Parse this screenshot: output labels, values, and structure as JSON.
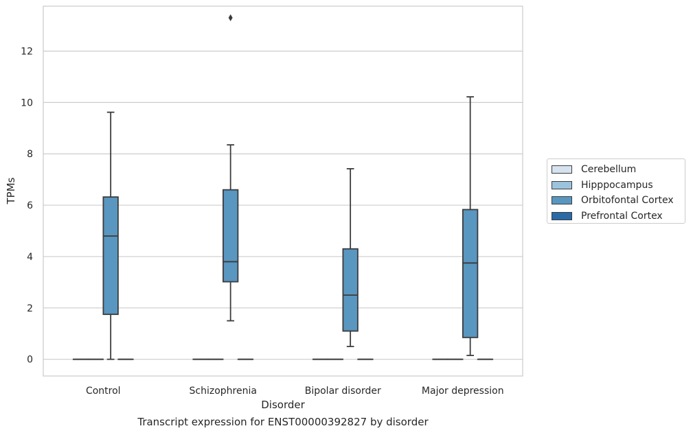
{
  "caption": "Transcript expression for ENST00000392827 by disorder",
  "chart_data": {
    "type": "boxplot",
    "xlabel": "Disorder",
    "ylabel": "TPMs",
    "ylim": [
      -0.65,
      13.75
    ],
    "yticks": [
      0,
      2,
      4,
      6,
      8,
      10,
      12
    ],
    "categories": [
      "Control",
      "Schizophrenia",
      "Bipolar disorder",
      "Major depression"
    ],
    "grid": "horizontal",
    "legend_placement": "center-right outside",
    "series": [
      {
        "name": "Cerebellum",
        "color": "#d6e3ef",
        "boxes": [
          {
            "q1": 0,
            "median": 0,
            "q3": 0,
            "whisker_low": 0,
            "whisker_high": 0
          },
          {
            "q1": 0,
            "median": 0,
            "q3": 0,
            "whisker_low": 0,
            "whisker_high": 0
          },
          {
            "q1": 0,
            "median": 0,
            "q3": 0,
            "whisker_low": 0,
            "whisker_high": 0
          },
          {
            "q1": 0,
            "median": 0,
            "q3": 0,
            "whisker_low": 0,
            "whisker_high": 0
          }
        ]
      },
      {
        "name": "Hipppocampus",
        "color": "#9cc3dd",
        "boxes": [
          {
            "q1": 0,
            "median": 0,
            "q3": 0,
            "whisker_low": 0,
            "whisker_high": 0
          },
          {
            "q1": 0,
            "median": 0,
            "q3": 0,
            "whisker_low": 0,
            "whisker_high": 0
          },
          {
            "q1": 0,
            "median": 0,
            "q3": 0,
            "whisker_low": 0,
            "whisker_high": 0
          },
          {
            "q1": 0,
            "median": 0,
            "q3": 0,
            "whisker_low": 0,
            "whisker_high": 0
          }
        ]
      },
      {
        "name": "Orbitofontal Cortex",
        "color": "#5996c0",
        "boxes": [
          {
            "q1": 1.75,
            "median": 4.8,
            "q3": 6.32,
            "whisker_low": 0,
            "whisker_high": 9.62
          },
          {
            "q1": 3.02,
            "median": 3.8,
            "q3": 6.6,
            "whisker_low": 1.5,
            "whisker_high": 8.35,
            "outliers": [
              13.3
            ]
          },
          {
            "q1": 1.1,
            "median": 2.5,
            "q3": 4.3,
            "whisker_low": 0.5,
            "whisker_high": 7.42
          },
          {
            "q1": 0.85,
            "median": 3.75,
            "q3": 5.83,
            "whisker_low": 0.15,
            "whisker_high": 10.22
          }
        ]
      },
      {
        "name": "Prefrontal Cortex",
        "color": "#2a6aa6",
        "boxes": [
          {
            "q1": 0,
            "median": 0,
            "q3": 0,
            "whisker_low": 0,
            "whisker_high": 0
          },
          {
            "q1": 0,
            "median": 0,
            "q3": 0,
            "whisker_low": 0,
            "whisker_high": 0
          },
          {
            "q1": 0,
            "median": 0,
            "q3": 0,
            "whisker_low": 0,
            "whisker_high": 0
          },
          {
            "q1": 0,
            "median": 0,
            "q3": 0,
            "whisker_low": 0,
            "whisker_high": 0
          }
        ]
      }
    ]
  }
}
